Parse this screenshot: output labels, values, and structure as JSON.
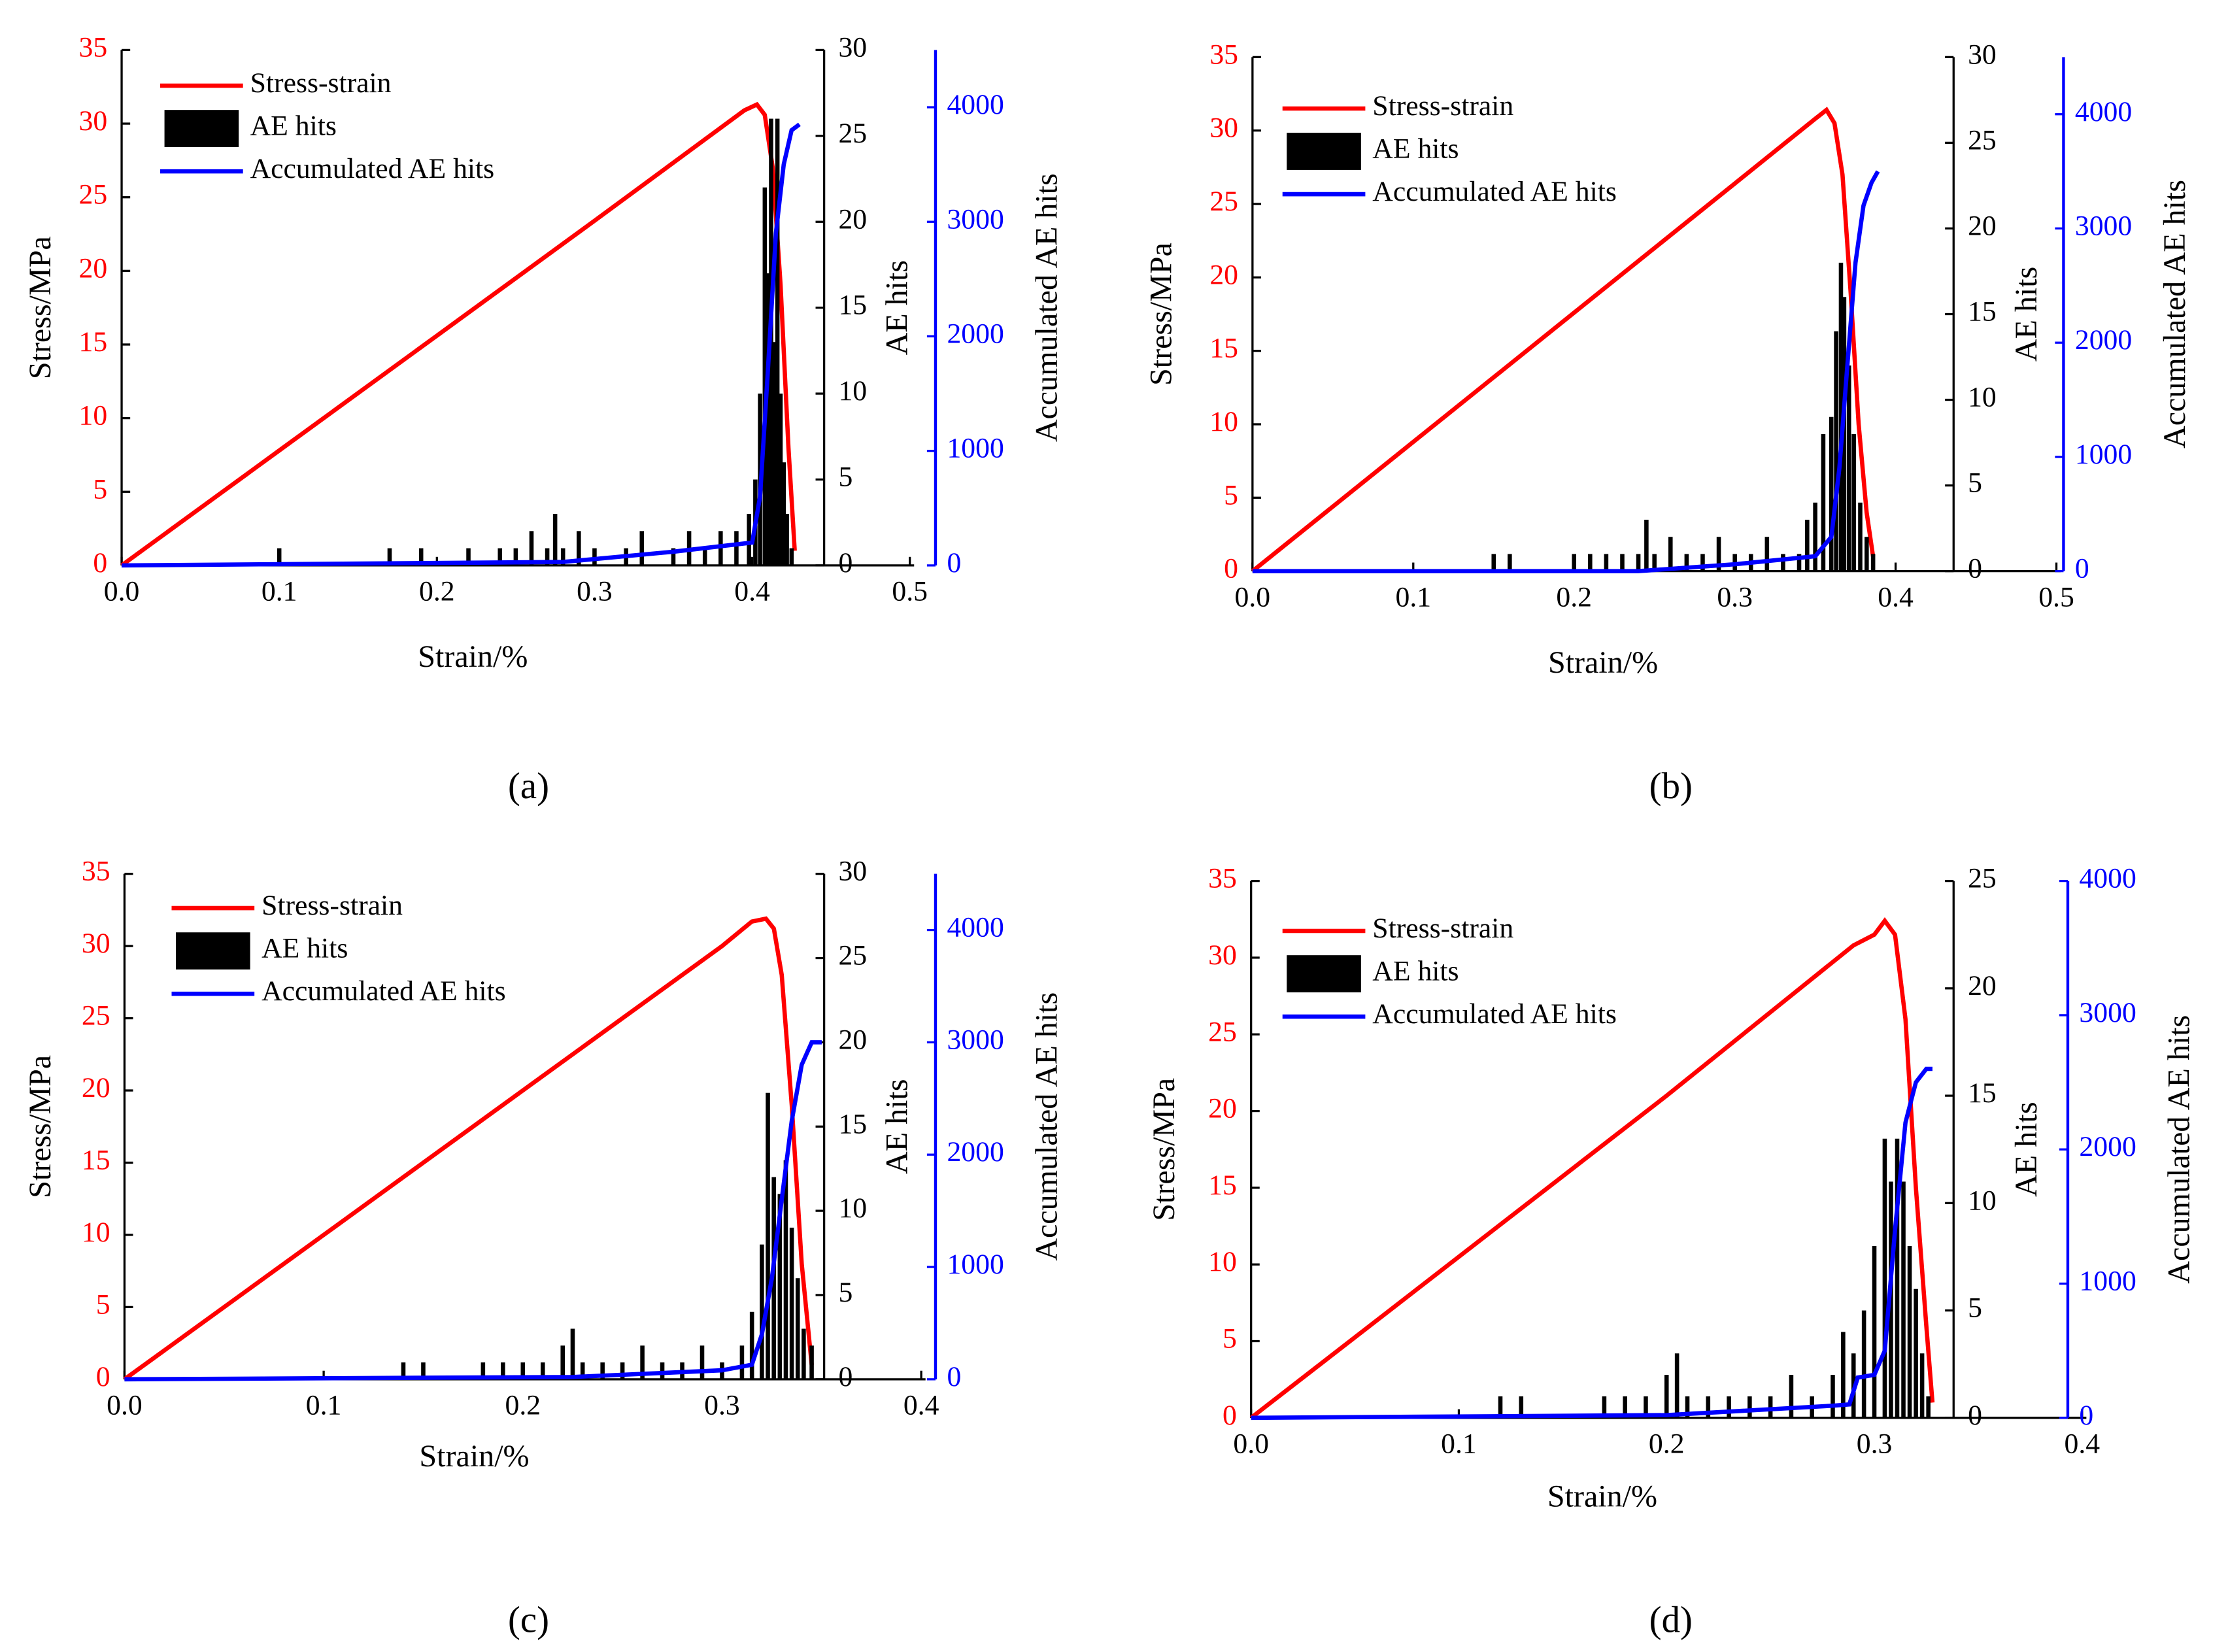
{
  "chart_data": [
    {
      "type": "combo",
      "panel_label": "(a)",
      "xlabel": "Strain/%",
      "ylabel": "Stress/MPa",
      "y2label": "AE hits",
      "y3label": "Accumulated  AE hits",
      "xlim": [
        0,
        0.5
      ],
      "xticks": [
        {
          "value": 0,
          "label": "0.0"
        },
        0.1,
        0.2,
        0.3,
        0.4,
        0.5
      ],
      "ylim": [
        0,
        35
      ],
      "yticks": [
        0,
        5,
        10,
        15,
        20,
        25,
        30,
        35
      ],
      "y2lim": [
        0,
        30
      ],
      "y2ticks": [
        0,
        5,
        10,
        15,
        20,
        25,
        30
      ],
      "y3lim": [
        0,
        4500
      ],
      "y3ticks": [
        0,
        1000,
        2000,
        3000,
        4000
      ],
      "series": [
        {
          "name": "Stress-strain",
          "color": "#ff0000",
          "kind": "line",
          "x": [
            0,
            0.1,
            0.2,
            0.3,
            0.395,
            0.403,
            0.408,
            0.413,
            0.418,
            0.423,
            0.427
          ],
          "values": [
            0,
            7.8,
            15.6,
            23.4,
            30.9,
            31.3,
            30.6,
            27,
            19,
            8,
            1
          ]
        },
        {
          "name": "AE hits",
          "color": "#000000",
          "kind": "bar",
          "axis": "y2",
          "x": [
            0.1,
            0.17,
            0.19,
            0.22,
            0.24,
            0.25,
            0.26,
            0.27,
            0.275,
            0.28,
            0.29,
            0.3,
            0.32,
            0.33,
            0.35,
            0.36,
            0.37,
            0.38,
            0.39,
            0.398,
            0.402,
            0.405,
            0.408,
            0.41,
            0.412,
            0.414,
            0.416,
            0.418,
            0.42,
            0.422,
            0.425
          ],
          "values": [
            1,
            1,
            1,
            1,
            1,
            1,
            2,
            1,
            3,
            1,
            2,
            1,
            1,
            2,
            1,
            2,
            1,
            2,
            2,
            3,
            5,
            10,
            22,
            17,
            26,
            13,
            26,
            10,
            6,
            3,
            1
          ]
        },
        {
          "name": "Accumulated  AE hits",
          "color": "#0000ff",
          "kind": "line",
          "axis": "y3",
          "x": [
            0,
            0.28,
            0.35,
            0.4,
            0.405,
            0.41,
            0.415,
            0.42,
            0.425,
            0.43
          ],
          "values": [
            0,
            30,
            120,
            200,
            600,
            1700,
            2900,
            3500,
            3800,
            3850
          ]
        }
      ]
    },
    {
      "type": "combo",
      "panel_label": "(b)",
      "xlabel": "Strain/%",
      "ylabel": "Stress/MPa",
      "y2label": "AE hits",
      "y3label": "Accumulated  AE hits",
      "xlim": [
        0,
        0.5
      ],
      "xticks": [
        {
          "value": 0,
          "label": "0.0"
        },
        0.1,
        0.2,
        0.3,
        0.4,
        0.5
      ],
      "ylim": [
        0,
        35
      ],
      "yticks": [
        0,
        5,
        10,
        15,
        20,
        25,
        30,
        35
      ],
      "y2lim": [
        0,
        30
      ],
      "y2ticks": [
        0,
        5,
        10,
        15,
        20,
        25,
        30
      ],
      "y3lim": [
        0,
        4500
      ],
      "y3ticks": [
        0,
        1000,
        2000,
        3000,
        4000
      ],
      "series": [
        {
          "name": "Stress-strain",
          "color": "#ff0000",
          "kind": "line",
          "x": [
            0,
            0.1,
            0.2,
            0.3,
            0.35,
            0.357,
            0.362,
            0.367,
            0.372,
            0.377,
            0.382,
            0.386
          ],
          "values": [
            0,
            8.8,
            17.6,
            26.4,
            30.8,
            31.4,
            30.5,
            27,
            19,
            10,
            4,
            1
          ]
        },
        {
          "name": "AE hits",
          "color": "#000000",
          "kind": "bar",
          "axis": "y2",
          "x": [
            0.15,
            0.16,
            0.2,
            0.21,
            0.22,
            0.23,
            0.24,
            0.245,
            0.25,
            0.26,
            0.27,
            0.28,
            0.29,
            0.3,
            0.31,
            0.32,
            0.33,
            0.34,
            0.345,
            0.35,
            0.355,
            0.36,
            0.363,
            0.366,
            0.368,
            0.371,
            0.374,
            0.378,
            0.382,
            0.386
          ],
          "values": [
            1,
            1,
            1,
            1,
            1,
            1,
            1,
            3,
            1,
            2,
            1,
            1,
            2,
            1,
            1,
            2,
            1,
            1,
            3,
            4,
            8,
            9,
            14,
            18,
            16,
            12,
            8,
            4,
            2,
            1
          ]
        },
        {
          "name": "Accumulated  AE hits",
          "color": "#0000ff",
          "kind": "line",
          "axis": "y3",
          "x": [
            0,
            0.24,
            0.3,
            0.35,
            0.36,
            0.365,
            0.37,
            0.375,
            0.38,
            0.385,
            0.389
          ],
          "values": [
            0,
            0,
            60,
            130,
            300,
            900,
            1800,
            2700,
            3200,
            3400,
            3500
          ]
        }
      ]
    },
    {
      "type": "combo",
      "panel_label": "(c)",
      "xlabel": "Strain/%",
      "ylabel": "Stress/MPa",
      "y2label": "AE hits",
      "y3label": "Accumulated  AE hits",
      "xlim": [
        0,
        0.4
      ],
      "xticks": [
        {
          "value": 0,
          "label": "0.0"
        },
        0.1,
        0.2,
        0.3,
        0.4
      ],
      "ylim": [
        0,
        35
      ],
      "yticks": [
        0,
        5,
        10,
        15,
        20,
        25,
        30,
        35
      ],
      "y2lim": [
        0,
        30
      ],
      "y2ticks": [
        0,
        5,
        10,
        15,
        20,
        25,
        30
      ],
      "y3lim": [
        0,
        4500
      ],
      "y3ticks": [
        0,
        1000,
        2000,
        3000,
        4000
      ],
      "series": [
        {
          "name": "Stress-strain",
          "color": "#ff0000",
          "kind": "line",
          "x": [
            0,
            0.1,
            0.2,
            0.3,
            0.315,
            0.322,
            0.326,
            0.33,
            0.335,
            0.34,
            0.345
          ],
          "values": [
            0,
            10,
            20,
            30,
            31.7,
            31.9,
            31.2,
            28,
            19,
            8,
            1
          ]
        },
        {
          "name": "AE hits",
          "color": "#000000",
          "kind": "bar",
          "axis": "y2",
          "x": [
            0.14,
            0.15,
            0.18,
            0.19,
            0.2,
            0.21,
            0.22,
            0.225,
            0.23,
            0.24,
            0.25,
            0.26,
            0.27,
            0.28,
            0.29,
            0.3,
            0.31,
            0.315,
            0.32,
            0.323,
            0.326,
            0.329,
            0.332,
            0.335,
            0.338,
            0.341,
            0.345
          ],
          "values": [
            1,
            1,
            1,
            1,
            1,
            1,
            2,
            3,
            1,
            1,
            1,
            2,
            1,
            1,
            2,
            1,
            2,
            4,
            8,
            17,
            12,
            11,
            13,
            9,
            6,
            3,
            2
          ]
        },
        {
          "name": "Accumulated  AE hits",
          "color": "#0000ff",
          "kind": "line",
          "axis": "y3",
          "x": [
            0,
            0.225,
            0.3,
            0.315,
            0.32,
            0.325,
            0.33,
            0.335,
            0.34,
            0.345,
            0.35
          ],
          "values": [
            0,
            20,
            80,
            130,
            400,
            900,
            1600,
            2300,
            2800,
            3000,
            3000
          ]
        }
      ]
    },
    {
      "type": "combo",
      "panel_label": "(d)",
      "xlabel": "Strain/%",
      "ylabel": "Stress/MPa",
      "y2label": "AE hits",
      "y3label": "Accumulated  AE hits",
      "xlim": [
        0,
        0.4
      ],
      "xticks": [
        {
          "value": 0,
          "label": "0.0"
        },
        0.1,
        0.2,
        0.3,
        0.4
      ],
      "ylim": [
        0,
        35
      ],
      "yticks": [
        0,
        5,
        10,
        15,
        20,
        25,
        30,
        35
      ],
      "y2lim": [
        0,
        25
      ],
      "y2ticks": [
        0,
        5,
        10,
        15,
        20,
        25
      ],
      "y3lim": [
        0,
        4000
      ],
      "y3ticks": [
        0,
        1000,
        2000,
        3000,
        4000
      ],
      "series": [
        {
          "name": "Stress-strain",
          "color": "#ff0000",
          "kind": "line",
          "x": [
            0,
            0.1,
            0.2,
            0.29,
            0.3,
            0.305,
            0.31,
            0.315,
            0.32,
            0.325,
            0.328
          ],
          "values": [
            0,
            10.5,
            21,
            30.8,
            31.5,
            32.4,
            31.5,
            26,
            15,
            6,
            1
          ]
        },
        {
          "name": "AE hits",
          "color": "#000000",
          "kind": "bar",
          "axis": "y2",
          "x": [
            0.12,
            0.13,
            0.17,
            0.18,
            0.19,
            0.2,
            0.205,
            0.21,
            0.22,
            0.23,
            0.24,
            0.25,
            0.26,
            0.27,
            0.28,
            0.285,
            0.29,
            0.295,
            0.3,
            0.305,
            0.308,
            0.311,
            0.314,
            0.317,
            0.32,
            0.323,
            0.326
          ],
          "values": [
            1,
            1,
            1,
            1,
            1,
            2,
            3,
            1,
            1,
            1,
            1,
            1,
            2,
            1,
            2,
            4,
            3,
            5,
            8,
            13,
            11,
            13,
            11,
            8,
            6,
            3,
            1
          ]
        },
        {
          "name": "Accumulated  AE hits",
          "color": "#0000ff",
          "kind": "line",
          "axis": "y3",
          "x": [
            0,
            0.2,
            0.28,
            0.288,
            0.292,
            0.3,
            0.305,
            0.31,
            0.315,
            0.32,
            0.325,
            0.328
          ],
          "values": [
            0,
            20,
            90,
            100,
            300,
            320,
            500,
            1400,
            2200,
            2500,
            2600,
            2600
          ]
        }
      ]
    }
  ]
}
